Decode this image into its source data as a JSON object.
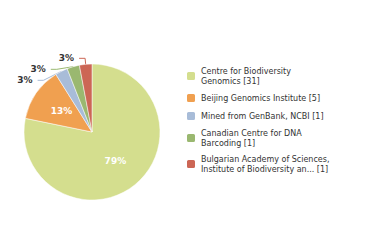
{
  "chart_data": {
    "type": "pie",
    "categories": [
      "Centre for Biodiversity\nGenomics [31]",
      "Beijing Genomics Institute [5]",
      "Mined from GenBank, NCBI [1]",
      "Canadian Centre for DNA\nBarcoding [1]",
      "Bulgarian Academy of Sciences,\nInstitute of Biodiversity an... [1]"
    ],
    "values": [
      79,
      13,
      3,
      3,
      3
    ],
    "value_labels": [
      "79%",
      "13%",
      "3%",
      "3%",
      "3%"
    ],
    "colors": [
      "#d4de8e",
      "#f0a050",
      "#a8bcd8",
      "#9ab870",
      "#cc6655"
    ],
    "data_labels": true,
    "legend": "right"
  }
}
